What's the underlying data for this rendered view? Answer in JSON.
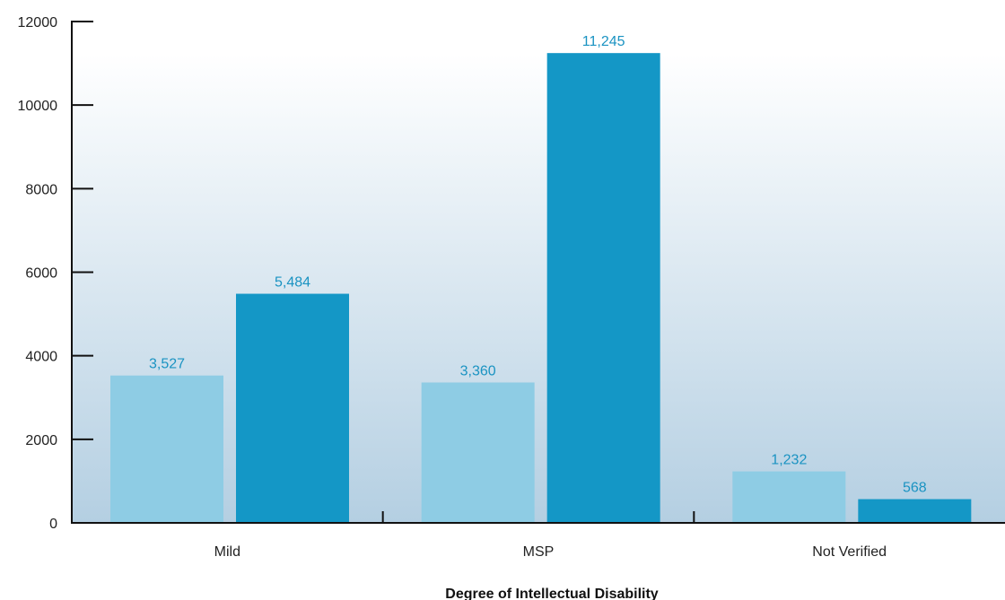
{
  "chart_data": {
    "type": "bar",
    "title": "",
    "xlabel": "Degree of Intellectual Disability",
    "ylabel": "",
    "ylim": [
      0,
      12000
    ],
    "yticks": [
      0,
      2000,
      4000,
      6000,
      8000,
      10000,
      12000
    ],
    "categories": [
      "Mild",
      "MSP",
      "Not Verified"
    ],
    "series": [
      {
        "values": [
          3527,
          3360,
          1232
        ],
        "labels": [
          "3,527",
          "3,360",
          "1,232"
        ],
        "color": "#8ecce4"
      },
      {
        "values": [
          5484,
          11245,
          568
        ],
        "labels": [
          "5,484",
          "11,245",
          "568"
        ],
        "color": "#1497c6"
      }
    ],
    "label_color": "#1a93c2",
    "legend": "none",
    "grid": false,
    "background": "white-to-light-blue gradient"
  }
}
